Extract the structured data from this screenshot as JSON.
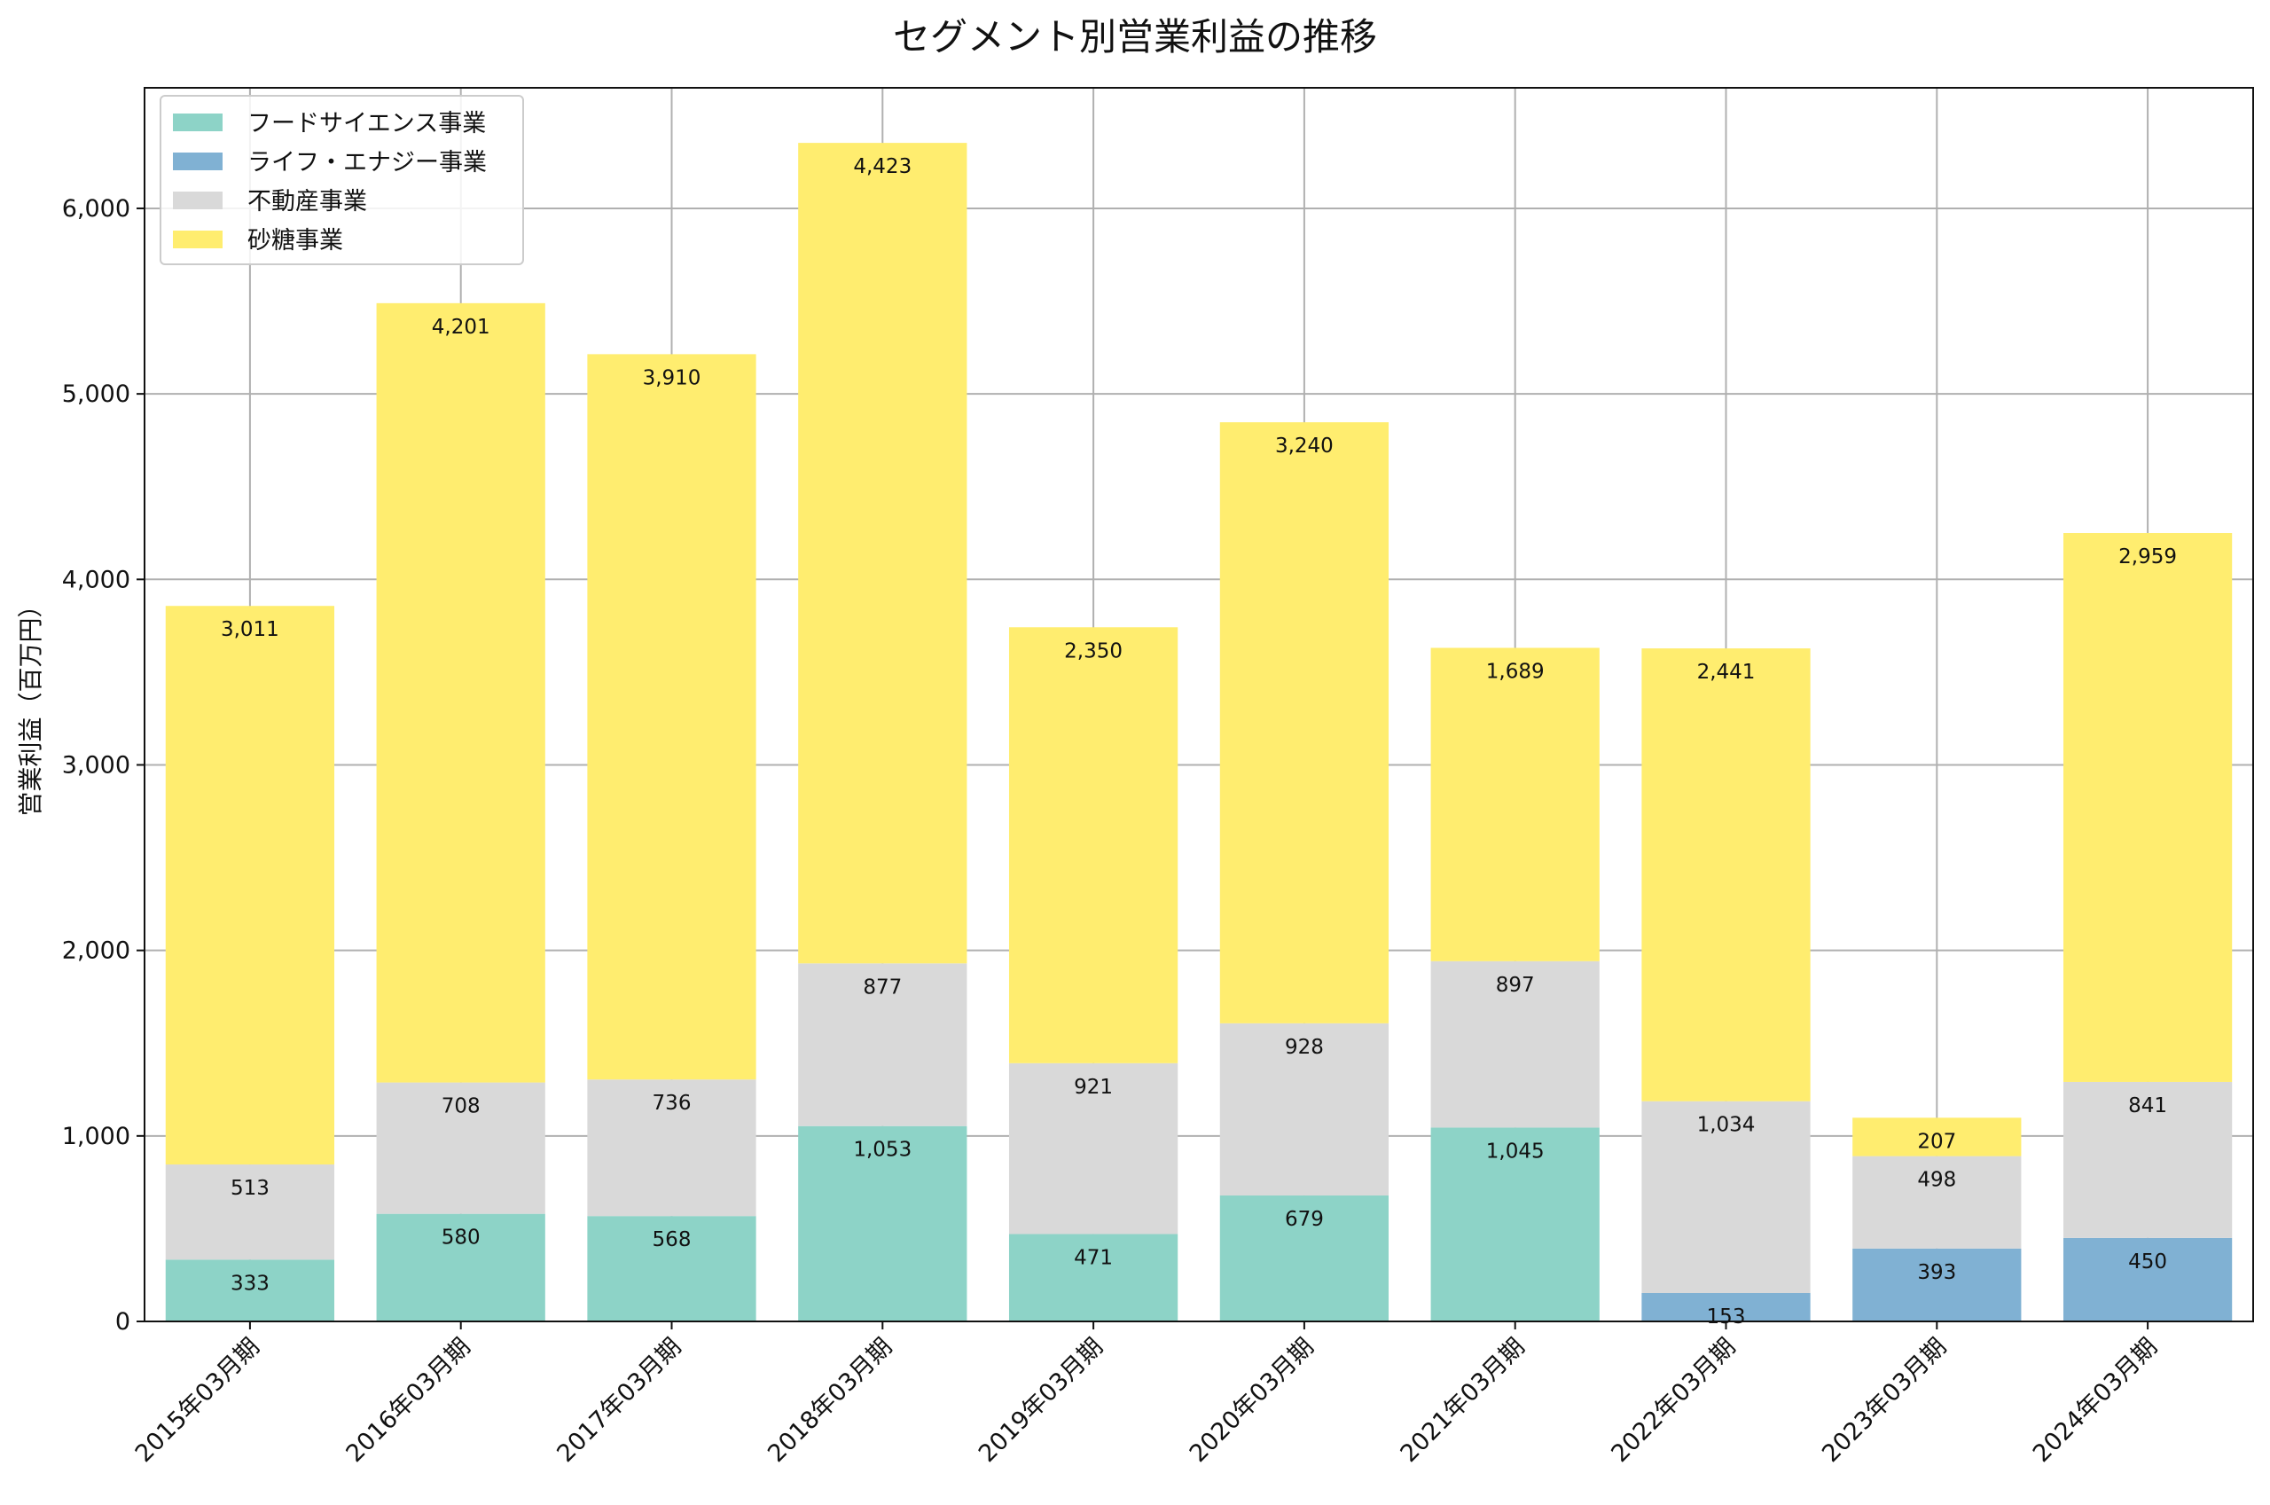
{
  "chart_data": {
    "type": "bar",
    "stacked": true,
    "title": "セグメント別営業利益の推移",
    "xlabel": "",
    "ylabel": "営業利益（百万円）",
    "ylim": [
      0,
      6650
    ],
    "yticks": [
      0,
      1000,
      2000,
      3000,
      4000,
      5000,
      6000
    ],
    "ytick_labels": [
      "0",
      "1,000",
      "2,000",
      "3,000",
      "4,000",
      "5,000",
      "6,000"
    ],
    "grid": true,
    "legend_position": "top-left",
    "categories": [
      "2015年03月期",
      "2016年03月期",
      "2017年03月期",
      "2018年03月期",
      "2019年03月期",
      "2020年03月期",
      "2021年03月期",
      "2022年03月期",
      "2023年03月期",
      "2024年03月期"
    ],
    "series": [
      {
        "name": "フードサイエンス事業",
        "color": "#8dd3c7",
        "values": [
          333,
          580,
          568,
          1053,
          471,
          679,
          1045,
          0,
          0,
          0
        ]
      },
      {
        "name": "ライフ・エナジー事業",
        "color": "#80b1d3",
        "values": [
          0,
          0,
          0,
          0,
          0,
          0,
          0,
          153,
          393,
          450
        ]
      },
      {
        "name": "不動産事業",
        "color": "#d9d9d9",
        "values": [
          513,
          708,
          736,
          877,
          921,
          928,
          897,
          1034,
          498,
          841
        ]
      },
      {
        "name": "砂糖事業",
        "color": "#ffed6f",
        "values": [
          3011,
          4201,
          3910,
          4423,
          2350,
          3240,
          1689,
          2441,
          207,
          2959
        ]
      }
    ]
  }
}
